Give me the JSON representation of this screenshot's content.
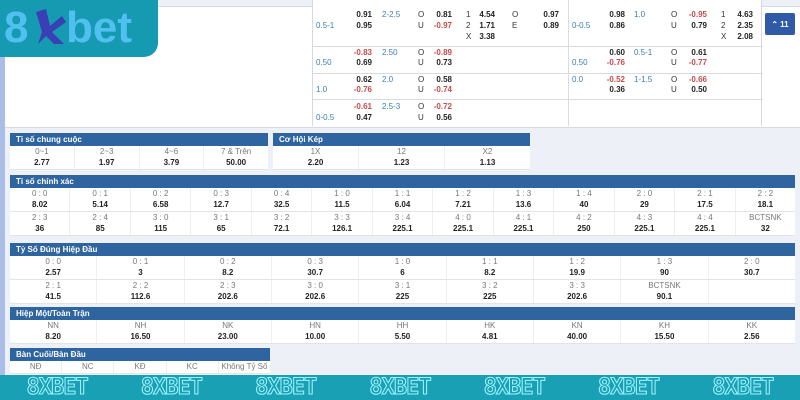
{
  "logo": {
    "text": "8xbet"
  },
  "collapse_button": {
    "icon": "chevron-up-icon",
    "label": "11"
  },
  "odds_left": [
    {
      "hdp": "0.5-1",
      "h1": "0.91",
      "h2": "0.95",
      "line": "2-2.5",
      "ou1": "0.81",
      "ou2": "-0.97",
      "x12": [
        [
          "1",
          "4.54"
        ],
        [
          "2",
          "1.71"
        ],
        [
          "X",
          "3.38"
        ]
      ],
      "oe": [
        [
          "O",
          "0.97"
        ],
        [
          "E",
          "0.89"
        ]
      ]
    },
    {
      "hdp": "0.50",
      "h1": "-0.83",
      "h2": "0.69",
      "line": "2.50",
      "ou1": "-0.89",
      "ou2": "0.73"
    },
    {
      "hdp": "1.0",
      "h1": "0.62",
      "h2": "-0.76",
      "line": "2.0",
      "ou1": "0.58",
      "ou2": "-0.74"
    },
    {
      "hdp": "0-0.5",
      "h1": "-0.61",
      "h2": "0.47",
      "line": "2.5-3",
      "ou1": "-0.72",
      "ou2": "0.56"
    }
  ],
  "odds_right": [
    {
      "hdp": "0-0.5",
      "h1": "0.98",
      "h2": "0.86",
      "line": "1.0",
      "ou1": "-0.95",
      "ou2": "0.79",
      "x12": [
        [
          "1",
          "4.63"
        ],
        [
          "2",
          "2.35"
        ],
        [
          "X",
          "2.08"
        ]
      ]
    },
    {
      "hdp": "0.50",
      "h1": "0.60",
      "h2": "-0.76",
      "line": "0.5-1",
      "ou1": "0.61",
      "ou2": "-0.77"
    },
    {
      "hdp": "0.0",
      "h1": "-0.52",
      "h2": "0.36",
      "line": "1-1.5",
      "ou1": "-0.66",
      "ou2": "0.50"
    }
  ],
  "ou_labels": [
    "O",
    "U"
  ],
  "sections": {
    "final_score": {
      "title": "Tỉ số chung cuộc",
      "rows": [
        [
          [
            "0~1",
            "2.77"
          ],
          [
            "2~3",
            "1.97"
          ],
          [
            "4~6",
            "3.79"
          ],
          [
            "7 & Trên",
            "50.00"
          ]
        ]
      ]
    },
    "double_chance": {
      "title": "Cơ Hội Kép",
      "rows": [
        [
          [
            "1X",
            "2.20"
          ],
          [
            "12",
            "1.23"
          ],
          [
            "X2",
            "1.13"
          ]
        ]
      ]
    },
    "correct_score": {
      "title": "Tỉ số chính xác",
      "rows": [
        [
          [
            "0 : 0",
            "8.02"
          ],
          [
            "0 : 1",
            "5.14"
          ],
          [
            "0 : 2",
            "6.58"
          ],
          [
            "0 : 3",
            "12.7"
          ],
          [
            "0 : 4",
            "32.5"
          ],
          [
            "1 : 0",
            "11.5"
          ],
          [
            "1 : 1",
            "6.04"
          ],
          [
            "1 : 2",
            "7.21"
          ],
          [
            "1 : 3",
            "13.6"
          ],
          [
            "1 : 4",
            "40"
          ],
          [
            "2 : 0",
            "29"
          ],
          [
            "2 : 1",
            "17.5"
          ],
          [
            "2 : 2",
            "18.1"
          ]
        ],
        [
          [
            "2 : 3",
            "36"
          ],
          [
            "2 : 4",
            "85"
          ],
          [
            "3 : 0",
            "115"
          ],
          [
            "3 : 1",
            "65"
          ],
          [
            "3 : 2",
            "72.1"
          ],
          [
            "3 : 3",
            "126.1"
          ],
          [
            "3 : 4",
            "225.1"
          ],
          [
            "4 : 0",
            "225.1"
          ],
          [
            "4 : 1",
            "225.1"
          ],
          [
            "4 : 2",
            "250"
          ],
          [
            "4 : 3",
            "225.1"
          ],
          [
            "4 : 4",
            "225.1"
          ],
          [
            "BCTSNK",
            "32"
          ]
        ]
      ]
    },
    "first_half_score": {
      "title": "Tỷ Số Đúng Hiệp Đầu",
      "rows": [
        [
          [
            "0 : 0",
            "2.57"
          ],
          [
            "0 : 1",
            "3"
          ],
          [
            "0 : 2",
            "8.2"
          ],
          [
            "0 : 3",
            "30.7"
          ],
          [
            "1 : 0",
            "6"
          ],
          [
            "1 : 1",
            "8.2"
          ],
          [
            "1 : 2",
            "19.9"
          ],
          [
            "1 : 3",
            "90"
          ],
          [
            "2 : 0",
            "30.7"
          ]
        ],
        [
          [
            "2 : 1",
            "41.5"
          ],
          [
            "2 : 2",
            "112.6"
          ],
          [
            "2 : 3",
            "202.6"
          ],
          [
            "3 : 0",
            "202.6"
          ],
          [
            "3 : 1",
            "225"
          ],
          [
            "3 : 2",
            "225"
          ],
          [
            "3 : 3",
            "202.6"
          ],
          [
            "BCTSNK",
            "90.1"
          ],
          [
            "",
            ""
          ]
        ]
      ]
    },
    "ht_ft": {
      "title": "Hiệp Một/Toàn Trận",
      "rows": [
        [
          [
            "NN",
            "8.20"
          ],
          [
            "NH",
            "16.50"
          ],
          [
            "NK",
            "23.00"
          ],
          [
            "HN",
            "10.00"
          ],
          [
            "HH",
            "5.50"
          ],
          [
            "HK",
            "4.81"
          ],
          [
            "KN",
            "40.00"
          ],
          [
            "KH",
            "15.50"
          ],
          [
            "KK",
            "2.56"
          ]
        ]
      ]
    },
    "last_first_goal": {
      "title": "Bàn Cuối/Bàn Đầu",
      "rows": [
        [
          [
            "NĐ",
            ""
          ],
          [
            "NC",
            ""
          ],
          [
            "KĐ",
            ""
          ],
          [
            "KC",
            ""
          ],
          [
            "Không Tỷ Số",
            ""
          ]
        ]
      ]
    }
  },
  "banner": {
    "text": "8XBET",
    "count": 7
  },
  "colors": {
    "header": "#2e64a0",
    "negative": "#c94a4a",
    "line": "#3b7db5",
    "brand": "#1aa0b4"
  }
}
